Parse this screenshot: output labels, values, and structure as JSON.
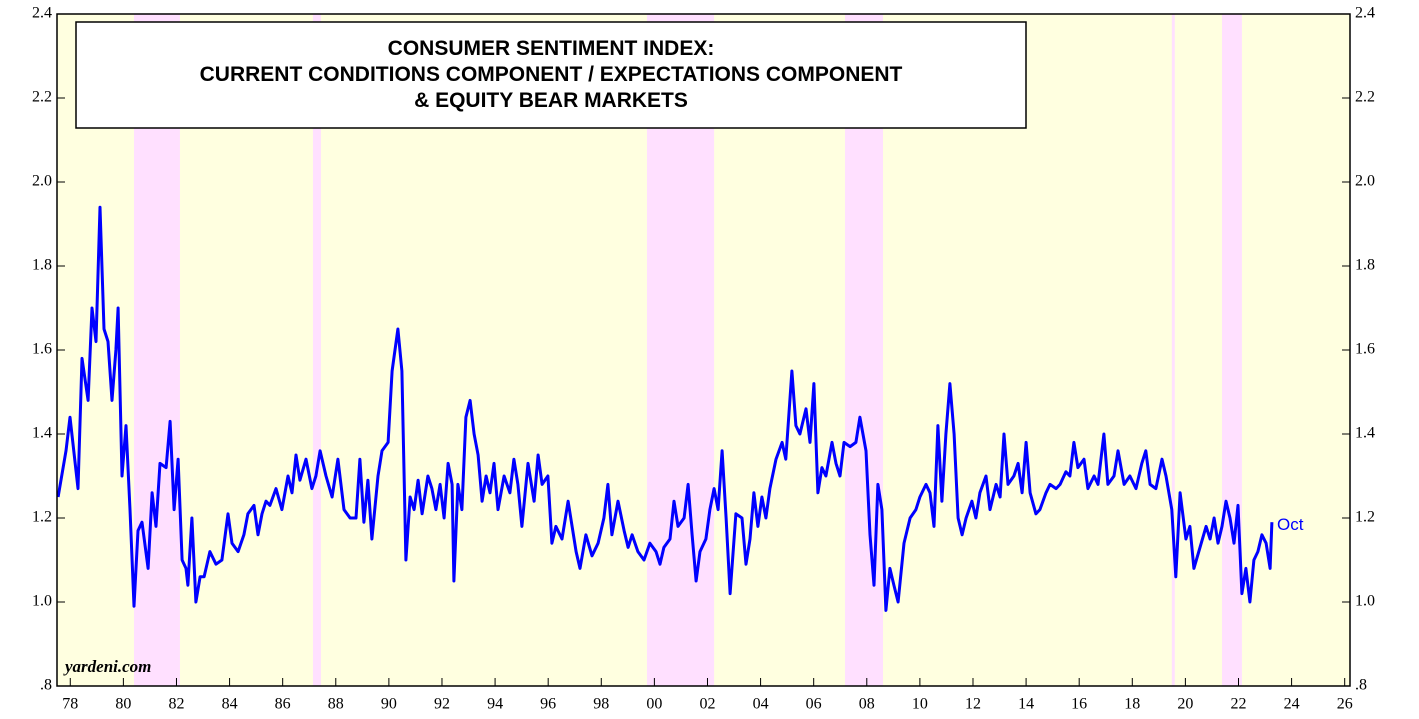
{
  "chart_data": {
    "type": "line",
    "title": [
      "CONSUMER SENTIMENT INDEX:",
      "CURRENT CONDITIONS COMPONENT / EXPECTATIONS COMPONENT",
      "& EQUITY BEAR MARKETS"
    ],
    "annotations": {
      "source": "yardeni.com",
      "last": "Oct"
    },
    "color": "#0000ff",
    "background_color": "#ffffe0",
    "shade_color": "#ffe0ff",
    "shaded_periods": [
      [
        1980.9,
        1982.63
      ],
      [
        1987.64,
        1987.94
      ],
      [
        2000.22,
        2002.75
      ],
      [
        2007.68,
        2009.11
      ],
      [
        2019.99,
        2020.1
      ],
      [
        2021.88,
        2022.63
      ]
    ],
    "xlim": [
      1978,
      2026.7
    ],
    "ylim": [
      0.8,
      2.4
    ],
    "yticks": [
      {
        "value": 0.8,
        "label": ".8"
      },
      {
        "value": 1.0,
        "label": "1.0"
      },
      1.2,
      1.4,
      1.6,
      1.8,
      {
        "value": 2.0,
        "label": "2.0"
      },
      2.2,
      2.4
    ],
    "xticks": [
      {
        "value": 1978.5,
        "label": "78"
      },
      {
        "value": 1980.5,
        "label": "80"
      },
      {
        "value": 1982.5,
        "label": "82"
      },
      {
        "value": 1984.5,
        "label": "84"
      },
      {
        "value": 1986.5,
        "label": "86"
      },
      {
        "value": 1988.5,
        "label": "88"
      },
      {
        "value": 1990.5,
        "label": "90"
      },
      {
        "value": 1992.5,
        "label": "92"
      },
      {
        "value": 1994.5,
        "label": "94"
      },
      {
        "value": 1996.5,
        "label": "96"
      },
      {
        "value": 1998.5,
        "label": "98"
      },
      {
        "value": 2000.5,
        "label": "00"
      },
      {
        "value": 2002.5,
        "label": "02"
      },
      {
        "value": 2004.5,
        "label": "04"
      },
      {
        "value": 2006.5,
        "label": "06"
      },
      {
        "value": 2008.5,
        "label": "08"
      },
      {
        "value": 2010.5,
        "label": "10"
      },
      {
        "value": 2012.5,
        "label": "12"
      },
      {
        "value": 2014.5,
        "label": "14"
      },
      {
        "value": 2016.5,
        "label": "16"
      },
      {
        "value": 2018.5,
        "label": "18"
      },
      {
        "value": 2020.5,
        "label": "20"
      },
      {
        "value": 2022.5,
        "label": "22"
      },
      {
        "value": 2024.5,
        "label": "24"
      },
      {
        "value": 2026.5,
        "label": "26"
      }
    ],
    "x": [
      1978.04,
      1978.34,
      1978.49,
      1978.79,
      1978.94,
      1979.17,
      1979.32,
      1979.47,
      1979.62,
      1979.77,
      1979.92,
      1980.07,
      1980.22,
      1980.3,
      1980.45,
      1980.6,
      1980.75,
      1980.9,
      1981.05,
      1981.2,
      1981.43,
      1981.58,
      1981.73,
      1981.88,
      1982.11,
      1982.26,
      1982.41,
      1982.56,
      1982.71,
      1982.86,
      1982.93,
      1983.08,
      1983.23,
      1983.39,
      1983.54,
      1983.76,
      1983.99,
      1984.21,
      1984.44,
      1984.59,
      1984.82,
      1985.04,
      1985.19,
      1985.42,
      1985.57,
      1985.72,
      1985.87,
      1986.02,
      1986.25,
      1986.47,
      1986.7,
      1986.85,
      1987.0,
      1987.15,
      1987.38,
      1987.6,
      1987.75,
      1987.91,
      1988.13,
      1988.36,
      1988.58,
      1988.81,
      1989.04,
      1989.26,
      1989.41,
      1989.56,
      1989.71,
      1989.86,
      1990.09,
      1990.24,
      1990.47,
      1990.62,
      1990.84,
      1990.99,
      1991.14,
      1991.3,
      1991.45,
      1991.6,
      1991.75,
      1991.97,
      1992.12,
      1992.27,
      1992.43,
      1992.58,
      1992.73,
      1992.88,
      1992.95,
      1993.1,
      1993.25,
      1993.4,
      1993.56,
      1993.71,
      1993.86,
      1994.01,
      1994.16,
      1994.31,
      1994.46,
      1994.61,
      1994.84,
      1995.06,
      1995.21,
      1995.36,
      1995.51,
      1995.74,
      1995.97,
      1996.12,
      1996.27,
      1996.49,
      1996.64,
      1996.79,
      1997.02,
      1997.25,
      1997.4,
      1997.55,
      1997.7,
      1997.92,
      1998.15,
      1998.38,
      1998.6,
      1998.75,
      1998.9,
      1999.13,
      1999.36,
      1999.51,
      1999.66,
      1999.88,
      2000.11,
      2000.33,
      2000.56,
      2000.71,
      2000.86,
      2001.09,
      2001.24,
      2001.39,
      2001.62,
      2001.77,
      2001.92,
      2002.07,
      2002.22,
      2002.44,
      2002.59,
      2002.75,
      2002.9,
      2003.05,
      2003.2,
      2003.35,
      2003.57,
      2003.8,
      2003.95,
      2004.1,
      2004.25,
      2004.4,
      2004.55,
      2004.7,
      2004.85,
      2005.08,
      2005.31,
      2005.45,
      2005.68,
      2005.83,
      2005.98,
      2006.21,
      2006.36,
      2006.51,
      2006.66,
      2006.81,
      2006.96,
      2007.19,
      2007.34,
      2007.49,
      2007.64,
      2007.87,
      2008.09,
      2008.24,
      2008.47,
      2008.62,
      2008.77,
      2008.92,
      2009.07,
      2009.22,
      2009.37,
      2009.52,
      2009.68,
      2009.9,
      2010.13,
      2010.35,
      2010.5,
      2010.73,
      2010.88,
      2011.03,
      2011.18,
      2011.33,
      2011.48,
      2011.63,
      2011.79,
      2011.94,
      2012.09,
      2012.24,
      2012.46,
      2012.61,
      2012.76,
      2012.99,
      2013.14,
      2013.37,
      2013.52,
      2013.67,
      2013.82,
      2014.04,
      2014.2,
      2014.35,
      2014.5,
      2014.65,
      2014.87,
      2015.02,
      2015.25,
      2015.4,
      2015.63,
      2015.78,
      2016.0,
      2016.15,
      2016.3,
      2016.45,
      2016.68,
      2016.83,
      2017.06,
      2017.21,
      2017.43,
      2017.58,
      2017.81,
      2017.96,
      2018.19,
      2018.41,
      2018.64,
      2018.86,
      2019.01,
      2019.17,
      2019.39,
      2019.62,
      2019.77,
      2019.99,
      2020.14,
      2020.3,
      2020.52,
      2020.67,
      2020.82,
      2021.05,
      2021.28,
      2021.43,
      2021.58,
      2021.73,
      2021.88,
      2022.03,
      2022.18,
      2022.33,
      2022.48,
      2022.63,
      2022.78,
      2022.93,
      2023.08,
      2023.23,
      2023.38,
      2023.54,
      2023.69,
      2023.76
    ],
    "values": [
      1.25,
      1.36,
      1.44,
      1.27,
      1.58,
      1.48,
      1.7,
      1.62,
      1.94,
      1.65,
      1.62,
      1.48,
      1.6,
      1.7,
      1.3,
      1.42,
      1.22,
      0.99,
      1.17,
      1.19,
      1.08,
      1.26,
      1.18,
      1.33,
      1.32,
      1.43,
      1.22,
      1.34,
      1.1,
      1.08,
      1.04,
      1.2,
      1.0,
      1.06,
      1.06,
      1.12,
      1.09,
      1.1,
      1.21,
      1.14,
      1.12,
      1.16,
      1.21,
      1.23,
      1.16,
      1.21,
      1.24,
      1.23,
      1.27,
      1.22,
      1.3,
      1.26,
      1.35,
      1.29,
      1.34,
      1.27,
      1.3,
      1.36,
      1.3,
      1.25,
      1.34,
      1.22,
      1.2,
      1.2,
      1.34,
      1.19,
      1.29,
      1.15,
      1.3,
      1.36,
      1.38,
      1.55,
      1.65,
      1.55,
      1.1,
      1.25,
      1.22,
      1.29,
      1.21,
      1.3,
      1.27,
      1.22,
      1.28,
      1.2,
      1.33,
      1.28,
      1.05,
      1.28,
      1.22,
      1.44,
      1.48,
      1.4,
      1.35,
      1.24,
      1.3,
      1.26,
      1.33,
      1.22,
      1.3,
      1.26,
      1.34,
      1.28,
      1.18,
      1.33,
      1.24,
      1.35,
      1.28,
      1.3,
      1.14,
      1.18,
      1.15,
      1.24,
      1.18,
      1.12,
      1.08,
      1.16,
      1.11,
      1.14,
      1.2,
      1.28,
      1.16,
      1.24,
      1.17,
      1.13,
      1.16,
      1.12,
      1.1,
      1.14,
      1.12,
      1.09,
      1.13,
      1.15,
      1.24,
      1.18,
      1.2,
      1.28,
      1.16,
      1.05,
      1.12,
      1.15,
      1.22,
      1.27,
      1.22,
      1.36,
      1.2,
      1.02,
      1.21,
      1.2,
      1.09,
      1.15,
      1.26,
      1.18,
      1.25,
      1.2,
      1.27,
      1.34,
      1.38,
      1.34,
      1.55,
      1.42,
      1.4,
      1.46,
      1.38,
      1.52,
      1.26,
      1.32,
      1.3,
      1.38,
      1.33,
      1.3,
      1.38,
      1.37,
      1.38,
      1.44,
      1.36,
      1.16,
      1.04,
      1.28,
      1.22,
      0.98,
      1.08,
      1.04,
      1.0,
      1.14,
      1.2,
      1.22,
      1.25,
      1.28,
      1.26,
      1.18,
      1.42,
      1.24,
      1.4,
      1.52,
      1.4,
      1.2,
      1.16,
      1.2,
      1.24,
      1.2,
      1.26,
      1.3,
      1.22,
      1.28,
      1.25,
      1.4,
      1.28,
      1.3,
      1.33,
      1.26,
      1.38,
      1.26,
      1.21,
      1.22,
      1.26,
      1.28,
      1.27,
      1.28,
      1.31,
      1.3,
      1.38,
      1.32,
      1.34,
      1.27,
      1.3,
      1.28,
      1.4,
      1.28,
      1.3,
      1.36,
      1.28,
      1.3,
      1.27,
      1.33,
      1.36,
      1.28,
      1.27,
      1.34,
      1.3,
      1.22,
      1.06,
      1.26,
      1.15,
      1.18,
      1.08,
      1.13,
      1.18,
      1.15,
      1.2,
      1.14,
      1.18,
      1.24,
      1.2,
      1.14,
      1.23,
      1.02,
      1.08,
      1.0,
      1.1,
      1.12,
      1.16,
      1.14,
      1.08,
      1.19
    ]
  }
}
